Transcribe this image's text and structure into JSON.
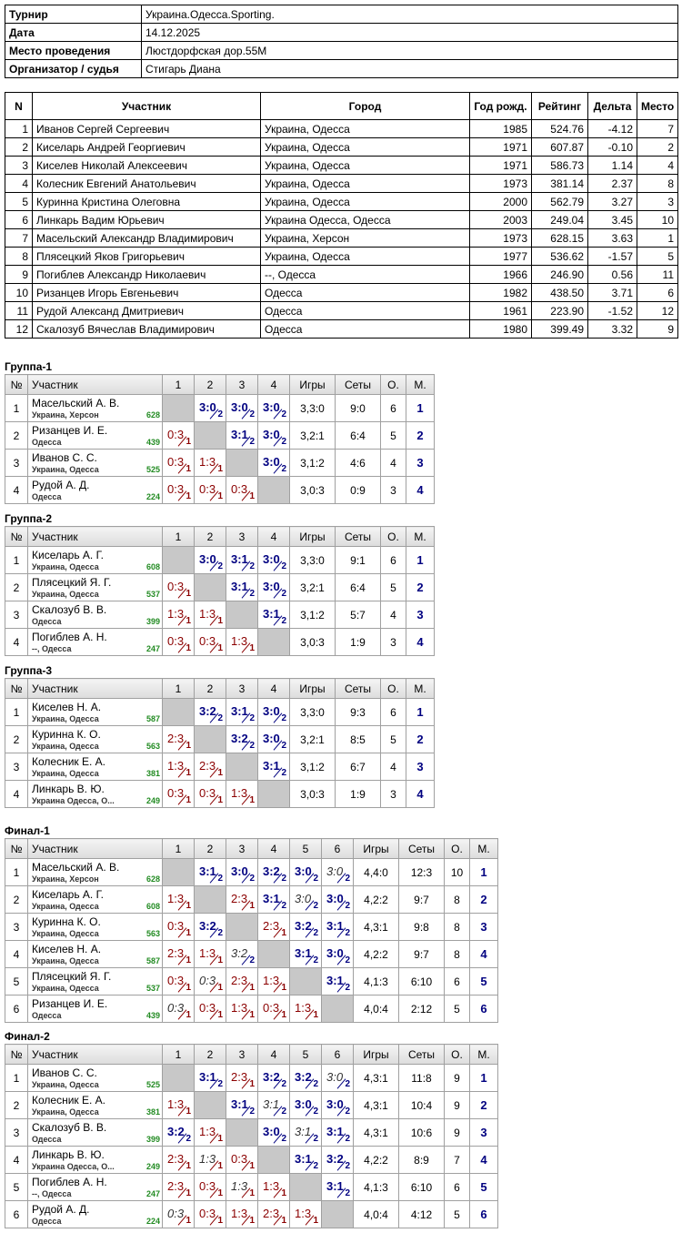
{
  "info": [
    {
      "label": "Турнир",
      "value": "Украина.Одесса.Sporting."
    },
    {
      "label": "Дата",
      "value": "14.12.2025"
    },
    {
      "label": "Место проведения",
      "value": "Люстдорфская дор.55М"
    },
    {
      "label": "Организатор / судья",
      "value": "Стигарь Диана"
    }
  ],
  "participants": {
    "columns": [
      "N",
      "Участник",
      "Город",
      "Год рожд.",
      "Рейтинг",
      "Дельта",
      "Место"
    ],
    "rows": [
      [
        "1",
        "Иванов Сергей Сергеевич",
        "Украина, Одесса",
        "1985",
        "524.76",
        "-4.12",
        "7"
      ],
      [
        "2",
        "Киселарь Андрей Георгиевич",
        "Украина, Одесса",
        "1971",
        "607.87",
        "-0.10",
        "2"
      ],
      [
        "3",
        "Киселев Николай Алексеевич",
        "Украина, Одесса",
        "1971",
        "586.73",
        "1.14",
        "4"
      ],
      [
        "4",
        "Колесник Евгений Анатольевич",
        "Украина, Одесса",
        "1973",
        "381.14",
        "2.37",
        "8"
      ],
      [
        "5",
        "Куринна Кристина Олеговна",
        "Украина, Одесса",
        "2000",
        "562.79",
        "3.27",
        "3"
      ],
      [
        "6",
        "Линкарь Вадим Юрьевич",
        "Украина Одесса, Одесса",
        "2003",
        "249.04",
        "3.45",
        "10"
      ],
      [
        "7",
        "Масельский Александр Владимирович",
        "Украина, Херсон",
        "1973",
        "628.15",
        "3.63",
        "1"
      ],
      [
        "8",
        "Плясецкий Яков Григорьевич",
        "Украина, Одесса",
        "1977",
        "536.62",
        "-1.57",
        "5"
      ],
      [
        "9",
        "Погиблев Александр Николаевич",
        "--, Одесса",
        "1966",
        "246.90",
        "0.56",
        "11"
      ],
      [
        "10",
        "Ризанцев Игорь Евгеньевич",
        "Одесса",
        "1982",
        "438.50",
        "3.71",
        "6"
      ],
      [
        "11",
        "Рудой Александ Дмитриевич",
        "Одесса",
        "1961",
        "223.90",
        "-1.52",
        "12"
      ],
      [
        "12",
        "Скалозуб Вячеслав Владимирович",
        "Одесса",
        "1980",
        "399.49",
        "3.32",
        "9"
      ]
    ]
  },
  "groups": [
    {
      "title": "Группа-1",
      "columns": [
        "№",
        "Участник",
        "1",
        "2",
        "3",
        "4",
        "Игры",
        "Сеты",
        "О.",
        "М."
      ],
      "rows": [
        {
          "n": 1,
          "name": "Масельский А. В.",
          "city": "Украина, Херсон",
          "rating": 628,
          "results": [
            null,
            {
              "score": "3:0",
              "pts": 2
            },
            {
              "score": "3:0",
              "pts": 2
            },
            {
              "score": "3:0",
              "pts": 2
            }
          ],
          "games": "3,3:0",
          "sets": "9:0",
          "points": 6,
          "place": 1
        },
        {
          "n": 2,
          "name": "Ризанцев И. Е.",
          "city": "Одесса",
          "rating": 439,
          "results": [
            {
              "score": "0:3",
              "pts": 1
            },
            null,
            {
              "score": "3:1",
              "pts": 2
            },
            {
              "score": "3:0",
              "pts": 2
            }
          ],
          "games": "3,2:1",
          "sets": "6:4",
          "points": 5,
          "place": 2
        },
        {
          "n": 3,
          "name": "Иванов С. С.",
          "city": "Украина, Одесса",
          "rating": 525,
          "results": [
            {
              "score": "0:3",
              "pts": 1
            },
            {
              "score": "1:3",
              "pts": 1
            },
            null,
            {
              "score": "3:0",
              "pts": 2
            }
          ],
          "games": "3,1:2",
          "sets": "4:6",
          "points": 4,
          "place": 3
        },
        {
          "n": 4,
          "name": "Рудой А. Д.",
          "city": "Одесса",
          "rating": 224,
          "results": [
            {
              "score": "0:3",
              "pts": 1
            },
            {
              "score": "0:3",
              "pts": 1
            },
            {
              "score": "0:3",
              "pts": 1
            },
            null
          ],
          "games": "3,0:3",
          "sets": "0:9",
          "points": 3,
          "place": 4
        }
      ]
    },
    {
      "title": "Группа-2",
      "columns": [
        "№",
        "Участник",
        "1",
        "2",
        "3",
        "4",
        "Игры",
        "Сеты",
        "О.",
        "М."
      ],
      "rows": [
        {
          "n": 1,
          "name": "Киселарь А. Г.",
          "city": "Украина, Одесса",
          "rating": 608,
          "results": [
            null,
            {
              "score": "3:0",
              "pts": 2
            },
            {
              "score": "3:1",
              "pts": 2
            },
            {
              "score": "3:0",
              "pts": 2
            }
          ],
          "games": "3,3:0",
          "sets": "9:1",
          "points": 6,
          "place": 1
        },
        {
          "n": 2,
          "name": "Плясецкий Я. Г.",
          "city": "Украина, Одесса",
          "rating": 537,
          "results": [
            {
              "score": "0:3",
              "pts": 1
            },
            null,
            {
              "score": "3:1",
              "pts": 2
            },
            {
              "score": "3:0",
              "pts": 2
            }
          ],
          "games": "3,2:1",
          "sets": "6:4",
          "points": 5,
          "place": 2
        },
        {
          "n": 3,
          "name": "Скалозуб В. В.",
          "city": "Одесса",
          "rating": 399,
          "results": [
            {
              "score": "1:3",
              "pts": 1
            },
            {
              "score": "1:3",
              "pts": 1
            },
            null,
            {
              "score": "3:1",
              "pts": 2
            }
          ],
          "games": "3,1:2",
          "sets": "5:7",
          "points": 4,
          "place": 3
        },
        {
          "n": 4,
          "name": "Погиблев А. Н.",
          "city": "--, Одесса",
          "rating": 247,
          "results": [
            {
              "score": "0:3",
              "pts": 1
            },
            {
              "score": "0:3",
              "pts": 1
            },
            {
              "score": "1:3",
              "pts": 1
            },
            null
          ],
          "games": "3,0:3",
          "sets": "1:9",
          "points": 3,
          "place": 4
        }
      ]
    },
    {
      "title": "Группа-3",
      "columns": [
        "№",
        "Участник",
        "1",
        "2",
        "3",
        "4",
        "Игры",
        "Сеты",
        "О.",
        "М."
      ],
      "rows": [
        {
          "n": 1,
          "name": "Киселев Н. А.",
          "city": "Украина, Одесса",
          "rating": 587,
          "results": [
            null,
            {
              "score": "3:2",
              "pts": 2
            },
            {
              "score": "3:1",
              "pts": 2
            },
            {
              "score": "3:0",
              "pts": 2
            }
          ],
          "games": "3,3:0",
          "sets": "9:3",
          "points": 6,
          "place": 1
        },
        {
          "n": 2,
          "name": "Куринна К. О.",
          "city": "Украина, Одесса",
          "rating": 563,
          "results": [
            {
              "score": "2:3",
              "pts": 1
            },
            null,
            {
              "score": "3:2",
              "pts": 2
            },
            {
              "score": "3:0",
              "pts": 2
            }
          ],
          "games": "3,2:1",
          "sets": "8:5",
          "points": 5,
          "place": 2
        },
        {
          "n": 3,
          "name": "Колесник Е. А.",
          "city": "Украина, Одесса",
          "rating": 381,
          "results": [
            {
              "score": "1:3",
              "pts": 1
            },
            {
              "score": "2:3",
              "pts": 1
            },
            null,
            {
              "score": "3:1",
              "pts": 2
            }
          ],
          "games": "3,1:2",
          "sets": "6:7",
          "points": 4,
          "place": 3
        },
        {
          "n": 4,
          "name": "Линкарь В. Ю.",
          "city": "Украина Одесса, О...",
          "rating": 249,
          "results": [
            {
              "score": "0:3",
              "pts": 1
            },
            {
              "score": "0:3",
              "pts": 1
            },
            {
              "score": "1:3",
              "pts": 1
            },
            null
          ],
          "games": "3,0:3",
          "sets": "1:9",
          "points": 3,
          "place": 4
        }
      ]
    },
    {
      "title": "Финал-1",
      "columns": [
        "№",
        "Участник",
        "1",
        "2",
        "3",
        "4",
        "5",
        "6",
        "Игры",
        "Сеты",
        "О.",
        "М."
      ],
      "rows": [
        {
          "n": 1,
          "name": "Масельский А. В.",
          "city": "Украина, Херсон",
          "rating": 628,
          "results": [
            null,
            {
              "score": "3:1",
              "pts": 2
            },
            {
              "score": "3:0",
              "pts": 2
            },
            {
              "score": "3:2",
              "pts": 2
            },
            {
              "score": "3:0",
              "pts": 2
            },
            {
              "score": "3:0",
              "pts": 2,
              "italic": true
            }
          ],
          "games": "4,4:0",
          "sets": "12:3",
          "points": 10,
          "place": 1
        },
        {
          "n": 2,
          "name": "Киселарь А. Г.",
          "city": "Украина, Одесса",
          "rating": 608,
          "results": [
            {
              "score": "1:3",
              "pts": 1
            },
            null,
            {
              "score": "2:3",
              "pts": 1
            },
            {
              "score": "3:1",
              "pts": 2
            },
            {
              "score": "3:0",
              "pts": 2,
              "italic": true
            },
            {
              "score": "3:0",
              "pts": 2
            }
          ],
          "games": "4,2:2",
          "sets": "9:7",
          "points": 8,
          "place": 2
        },
        {
          "n": 3,
          "name": "Куринна К. О.",
          "city": "Украина, Одесса",
          "rating": 563,
          "results": [
            {
              "score": "0:3",
              "pts": 1
            },
            {
              "score": "3:2",
              "pts": 2
            },
            null,
            {
              "score": "2:3",
              "pts": 1
            },
            {
              "score": "3:2",
              "pts": 2
            },
            {
              "score": "3:1",
              "pts": 2
            }
          ],
          "games": "4,3:1",
          "sets": "9:8",
          "points": 8,
          "place": 3
        },
        {
          "n": 4,
          "name": "Киселев Н. А.",
          "city": "Украина, Одесса",
          "rating": 587,
          "results": [
            {
              "score": "2:3",
              "pts": 1
            },
            {
              "score": "1:3",
              "pts": 1
            },
            {
              "score": "3:2",
              "pts": 2,
              "italic": true
            },
            null,
            {
              "score": "3:1",
              "pts": 2
            },
            {
              "score": "3:0",
              "pts": 2
            }
          ],
          "games": "4,2:2",
          "sets": "9:7",
          "points": 8,
          "place": 4
        },
        {
          "n": 5,
          "name": "Плясецкий Я. Г.",
          "city": "Украина, Одесса",
          "rating": 537,
          "results": [
            {
              "score": "0:3",
              "pts": 1
            },
            {
              "score": "0:3",
              "pts": 1,
              "italic": true
            },
            {
              "score": "2:3",
              "pts": 1
            },
            {
              "score": "1:3",
              "pts": 1
            },
            null,
            {
              "score": "3:1",
              "pts": 2
            }
          ],
          "games": "4,1:3",
          "sets": "6:10",
          "points": 6,
          "place": 5
        },
        {
          "n": 6,
          "name": "Ризанцев И. Е.",
          "city": "Одесса",
          "rating": 439,
          "results": [
            {
              "score": "0:3",
              "pts": 1,
              "italic": true
            },
            {
              "score": "0:3",
              "pts": 1
            },
            {
              "score": "1:3",
              "pts": 1
            },
            {
              "score": "0:3",
              "pts": 1
            },
            {
              "score": "1:3",
              "pts": 1
            },
            null
          ],
          "games": "4,0:4",
          "sets": "2:12",
          "points": 5,
          "place": 6
        }
      ]
    },
    {
      "title": "Финал-2",
      "columns": [
        "№",
        "Участник",
        "1",
        "2",
        "3",
        "4",
        "5",
        "6",
        "Игры",
        "Сеты",
        "О.",
        "М."
      ],
      "rows": [
        {
          "n": 1,
          "name": "Иванов С. С.",
          "city": "Украина, Одесса",
          "rating": 525,
          "results": [
            null,
            {
              "score": "3:1",
              "pts": 2
            },
            {
              "score": "2:3",
              "pts": 1
            },
            {
              "score": "3:2",
              "pts": 2
            },
            {
              "score": "3:2",
              "pts": 2
            },
            {
              "score": "3:0",
              "pts": 2,
              "italic": true
            }
          ],
          "games": "4,3:1",
          "sets": "11:8",
          "points": 9,
          "place": 1
        },
        {
          "n": 2,
          "name": "Колесник Е. А.",
          "city": "Украина, Одесса",
          "rating": 381,
          "results": [
            {
              "score": "1:3",
              "pts": 1
            },
            null,
            {
              "score": "3:1",
              "pts": 2
            },
            {
              "score": "3:1",
              "pts": 2,
              "italic": true
            },
            {
              "score": "3:0",
              "pts": 2
            },
            {
              "score": "3:0",
              "pts": 2
            }
          ],
          "games": "4,3:1",
          "sets": "10:4",
          "points": 9,
          "place": 2
        },
        {
          "n": 3,
          "name": "Скалозуб В. В.",
          "city": "Одесса",
          "rating": 399,
          "results": [
            {
              "score": "3:2",
              "pts": 2
            },
            {
              "score": "1:3",
              "pts": 1
            },
            null,
            {
              "score": "3:0",
              "pts": 2
            },
            {
              "score": "3:1",
              "pts": 2,
              "italic": true
            },
            {
              "score": "3:1",
              "pts": 2
            }
          ],
          "games": "4,3:1",
          "sets": "10:6",
          "points": 9,
          "place": 3
        },
        {
          "n": 4,
          "name": "Линкарь В. Ю.",
          "city": "Украина Одесса, О...",
          "rating": 249,
          "results": [
            {
              "score": "2:3",
              "pts": 1
            },
            {
              "score": "1:3",
              "pts": 1,
              "italic": true
            },
            {
              "score": "0:3",
              "pts": 1
            },
            null,
            {
              "score": "3:1",
              "pts": 2
            },
            {
              "score": "3:2",
              "pts": 2
            }
          ],
          "games": "4,2:2",
          "sets": "8:9",
          "points": 7,
          "place": 4
        },
        {
          "n": 5,
          "name": "Погиблев А. Н.",
          "city": "--, Одесса",
          "rating": 247,
          "results": [
            {
              "score": "2:3",
              "pts": 1
            },
            {
              "score": "0:3",
              "pts": 1
            },
            {
              "score": "1:3",
              "pts": 1,
              "italic": true
            },
            {
              "score": "1:3",
              "pts": 1
            },
            null,
            {
              "score": "3:1",
              "pts": 2
            }
          ],
          "games": "4,1:3",
          "sets": "6:10",
          "points": 6,
          "place": 5
        },
        {
          "n": 6,
          "name": "Рудой А. Д.",
          "city": "Одесса",
          "rating": 224,
          "results": [
            {
              "score": "0:3",
              "pts": 1,
              "italic": true
            },
            {
              "score": "0:3",
              "pts": 1
            },
            {
              "score": "1:3",
              "pts": 1
            },
            {
              "score": "2:3",
              "pts": 1
            },
            {
              "score": "1:3",
              "pts": 1
            },
            null
          ],
          "games": "4,0:4",
          "sets": "4:12",
          "points": 5,
          "place": 6
        }
      ]
    }
  ]
}
